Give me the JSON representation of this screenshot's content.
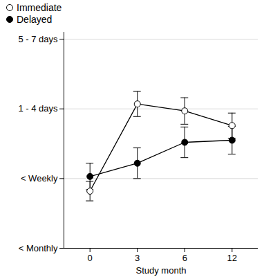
{
  "chart_data": {
    "type": "line",
    "x_label": "Study month",
    "categories": [
      "0",
      "3",
      "6",
      "12"
    ],
    "ylim": [
      1,
      4.1
    ],
    "yticks": [
      {
        "value": 1,
        "label": "< Monthly"
      },
      {
        "value": 2,
        "label": "< Weekly"
      },
      {
        "value": 3,
        "label": "1 - 4 days"
      },
      {
        "value": 4,
        "label": "5 - 7 days"
      }
    ],
    "grid": true,
    "legend": "top-left",
    "series": [
      {
        "name": "Immediate",
        "color": "#000000",
        "marker": "open_circle",
        "values": [
          1.82,
          3.07,
          2.97,
          2.76
        ],
        "error": [
          0.14,
          0.18,
          0.19,
          0.18
        ]
      },
      {
        "name": "Delayed",
        "color": "#000000",
        "marker": "filled_circle",
        "values": [
          2.03,
          2.22,
          2.52,
          2.55
        ],
        "error": [
          0.19,
          0.22,
          0.22,
          0.2
        ]
      }
    ]
  }
}
